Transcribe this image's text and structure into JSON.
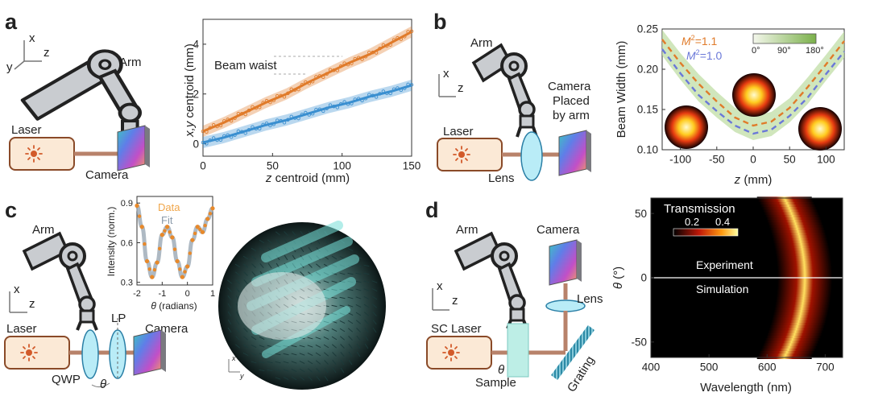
{
  "panels": {
    "a": {
      "letter": "a",
      "axes": {
        "x": "x",
        "y": "y",
        "z": "z"
      },
      "labels": {
        "arm": "Arm",
        "laser": "Laser",
        "camera": "Camera"
      },
      "chart_data": {
        "type": "scatter",
        "xlabel_var": "z",
        "xlabel_rest": " centroid (mm)",
        "ylabel_var": "x,y",
        "ylabel_rest": " centroid (mm)",
        "xlim": [
          0,
          150
        ],
        "ylim": [
          -0.5,
          5
        ],
        "xticks": [
          "0",
          "50",
          "100",
          "150"
        ],
        "yticks": [
          "0",
          "2",
          "4"
        ],
        "annotation": "Beam waist",
        "series": [
          {
            "color": "#e07b2a",
            "x": [
              0,
              15,
              30,
              45,
              60,
              75,
              90,
              105,
              120,
              135,
              150
            ],
            "values": [
              0.5,
              0.85,
              1.25,
              1.65,
              2.0,
              2.45,
              2.85,
              3.25,
              3.6,
              4.05,
              4.5
            ]
          },
          {
            "color": "#3a8fd0",
            "x": [
              0,
              15,
              30,
              45,
              60,
              75,
              90,
              105,
              120,
              135,
              150
            ],
            "values": [
              0.05,
              0.25,
              0.5,
              0.75,
              0.95,
              1.2,
              1.45,
              1.65,
              1.9,
              2.1,
              2.35
            ]
          }
        ]
      }
    },
    "b": {
      "letter": "b",
      "axes": {
        "x": "x",
        "z": "z"
      },
      "labels": {
        "arm": "Arm",
        "laser": "Laser",
        "lens": "Lens",
        "camera_line1": "Camera",
        "camera_line2": "Placed",
        "camera_line3": "by arm"
      },
      "chart_data": {
        "type": "line",
        "xlabel_var": "z",
        "xlabel_rest": " (mm)",
        "ylabel": "Beam Width (mm)",
        "xlim": [
          -125,
          125
        ],
        "ylim": [
          0.1,
          0.25
        ],
        "xticks": [
          "-100",
          "-50",
          "0",
          "50",
          "100"
        ],
        "yticks": [
          "0.10",
          "0.15",
          "0.20",
          "0.25"
        ],
        "legend": [
          {
            "label_pre": "M",
            "label_sup": "2",
            "label_post": "=1.1",
            "color": "#e07b2a"
          },
          {
            "label_pre": "M",
            "label_sup": "2",
            "label_post": "=1.0",
            "color": "#6a78d8"
          }
        ],
        "colorbar_ticks": [
          "0°",
          "90°",
          "180°"
        ],
        "series": [
          {
            "color": "#e07b2a",
            "x": [
              -125,
              -100,
              -75,
              -50,
              -25,
              0,
              25,
              50,
              75,
              100,
              125
            ],
            "values": [
              0.237,
              0.208,
              0.182,
              0.16,
              0.14,
              0.13,
              0.135,
              0.152,
              0.178,
              0.206,
              0.235
            ]
          },
          {
            "color": "#6a78d8",
            "x": [
              -125,
              -100,
              -75,
              -50,
              -25,
              0,
              25,
              50,
              75,
              100,
              125
            ],
            "values": [
              0.225,
              0.195,
              0.168,
              0.148,
              0.13,
              0.12,
              0.125,
              0.142,
              0.165,
              0.194,
              0.222
            ]
          }
        ]
      }
    },
    "c": {
      "letter": "c",
      "axes": {
        "x": "x",
        "z": "z"
      },
      "labels": {
        "arm": "Arm",
        "laser": "Laser",
        "lp": "LP",
        "camera": "Camera",
        "qwp": "QWP",
        "theta": "θ"
      },
      "vector_axes": {
        "x": "x",
        "y": "y"
      },
      "chart_data": {
        "type": "line",
        "xlabel_var": "θ",
        "xlabel_rest": " (radians)",
        "ylabel": "Intensity (norm.)",
        "xlim": [
          -2,
          1
        ],
        "ylim": [
          0.28,
          0.95
        ],
        "xticks": [
          "-2",
          "-1",
          "0",
          "1"
        ],
        "yticks": [
          "0.3",
          "0.6",
          "0.9"
        ],
        "legend": [
          {
            "label": "Data",
            "color": "#f0a64a"
          },
          {
            "label": "Fit",
            "color": "#8a9aaa"
          }
        ],
        "series": [
          {
            "name": "Data",
            "color": "#e8892a",
            "x": [
              -2.0,
              -1.8,
              -1.6,
              -1.4,
              -1.2,
              -1.0,
              -0.8,
              -0.6,
              -0.4,
              -0.2,
              0.0,
              0.2,
              0.4,
              0.6,
              0.8,
              1.0
            ],
            "values": [
              0.88,
              0.72,
              0.46,
              0.34,
              0.45,
              0.66,
              0.72,
              0.64,
              0.46,
              0.34,
              0.42,
              0.62,
              0.72,
              0.68,
              0.78,
              0.86
            ]
          }
        ]
      }
    },
    "d": {
      "letter": "d",
      "axes": {
        "x": "x",
        "z": "z"
      },
      "labels": {
        "arm": "Arm",
        "camera": "Camera",
        "lens": "Lens",
        "sc_laser": "SC Laser",
        "sample": "Sample",
        "grating": "Grating",
        "theta": "θ"
      },
      "chart_data": {
        "type": "heatmap",
        "xlabel": "Wavelength (nm)",
        "ylabel_var": "θ",
        "ylabel_rest": " (°)",
        "xlim": [
          400,
          730
        ],
        "ylim": [
          -62,
          62
        ],
        "xticks": [
          "400",
          "500",
          "600",
          "700"
        ],
        "yticks": [
          "-50",
          "0",
          "50"
        ],
        "colorbar_title": "Transmission",
        "colorbar_ticks": [
          "0.2",
          "0.4"
        ],
        "top_label": "Experiment",
        "bottom_label": "Simulation",
        "peak_wavelength_at_0": 665,
        "peak_wavelength_at_60": 632
      }
    }
  }
}
